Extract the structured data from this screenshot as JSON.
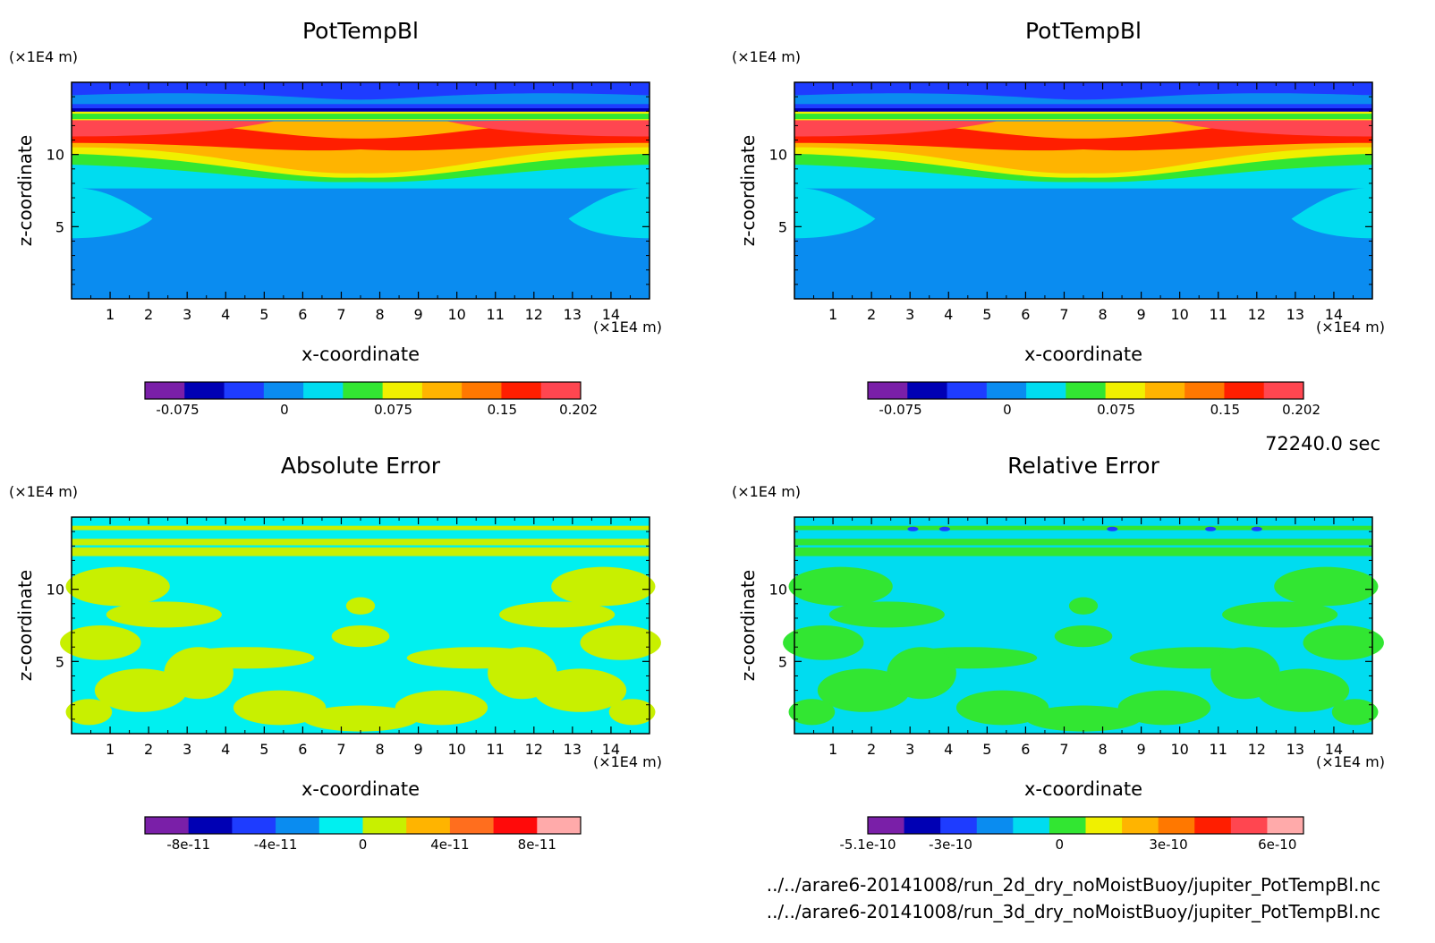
{
  "figure": {
    "timestamp": "72240.0 sec",
    "files": [
      "../../arare6-20141008/run_2d_dry_noMoistBuoy/jupiter_PotTempBl.nc",
      "../../arare6-20141008/run_3d_dry_noMoistBuoy/jupiter_PotTempBl.nc"
    ]
  },
  "chart_data": [
    {
      "type": "heatmap",
      "title": "PotTempBl",
      "xlabel": "x-coordinate",
      "ylabel": "z-coordinate",
      "x_unit": "(×1E4 m)",
      "z_unit": "(×1E4 m)",
      "xlim": [
        0,
        15
      ],
      "ylim": [
        0,
        15
      ],
      "x_ticks": [
        1,
        2,
        3,
        4,
        5,
        6,
        7,
        8,
        9,
        10,
        11,
        12,
        13,
        14
      ],
      "z_ticks": [
        5,
        10
      ],
      "colorbar": {
        "colors": [
          "#7a1fa8",
          "#0000b4",
          "#1e3cff",
          "#0a8cf0",
          "#00dcf0",
          "#32e632",
          "#f0f000",
          "#ffb400",
          "#ff7800",
          "#ff1e00",
          "#ff4650"
        ],
        "tick_labels": [
          "-0.075",
          "0",
          "0.075",
          "0.15",
          "0.202"
        ]
      }
    },
    {
      "type": "heatmap",
      "title": "PotTempBl",
      "xlabel": "x-coordinate",
      "ylabel": "z-coordinate",
      "x_unit": "(×1E4 m)",
      "z_unit": "(×1E4 m)",
      "xlim": [
        0,
        15
      ],
      "ylim": [
        0,
        15
      ],
      "x_ticks": [
        1,
        2,
        3,
        4,
        5,
        6,
        7,
        8,
        9,
        10,
        11,
        12,
        13,
        14
      ],
      "z_ticks": [
        5,
        10
      ],
      "colorbar": {
        "colors": [
          "#7a1fa8",
          "#0000b4",
          "#1e3cff",
          "#0a8cf0",
          "#00dcf0",
          "#32e632",
          "#f0f000",
          "#ffb400",
          "#ff7800",
          "#ff1e00",
          "#ff4650"
        ],
        "tick_labels": [
          "-0.075",
          "0",
          "0.075",
          "0.15",
          "0.202"
        ]
      }
    },
    {
      "type": "heatmap",
      "title": "Absolute Error",
      "xlabel": "x-coordinate",
      "ylabel": "z-coordinate",
      "x_unit": "(×1E4 m)",
      "z_unit": "(×1E4 m)",
      "xlim": [
        0,
        15
      ],
      "ylim": [
        0,
        15
      ],
      "x_ticks": [
        1,
        2,
        3,
        4,
        5,
        6,
        7,
        8,
        9,
        10,
        11,
        12,
        13,
        14
      ],
      "z_ticks": [
        5,
        10
      ],
      "colorbar": {
        "colors": [
          "#7a1fa8",
          "#0000b4",
          "#1e3cff",
          "#0a8cf0",
          "#00f0f0",
          "#c8f000",
          "#ffb400",
          "#ff6e1e",
          "#ff0a0a",
          "#ffaaaa"
        ],
        "tick_labels": [
          "-8e-11",
          "-4e-11",
          "0",
          "4e-11",
          "8e-11"
        ]
      }
    },
    {
      "type": "heatmap",
      "title": "Relative Error",
      "xlabel": "x-coordinate",
      "ylabel": "z-coordinate",
      "x_unit": "(×1E4 m)",
      "z_unit": "(×1E4 m)",
      "xlim": [
        0,
        15
      ],
      "ylim": [
        0,
        15
      ],
      "x_ticks": [
        1,
        2,
        3,
        4,
        5,
        6,
        7,
        8,
        9,
        10,
        11,
        12,
        13,
        14
      ],
      "z_ticks": [
        5,
        10
      ],
      "colorbar": {
        "colors": [
          "#7a1fa8",
          "#0000b4",
          "#1e3cff",
          "#0a8cf0",
          "#00dcf0",
          "#32e632",
          "#f0f000",
          "#ffb400",
          "#ff7800",
          "#ff1e00",
          "#ff4650",
          "#ffaaaa"
        ],
        "tick_labels": [
          "-5.1e-10",
          "-3e-10",
          "0",
          "3e-10",
          "6e-10"
        ]
      }
    }
  ]
}
